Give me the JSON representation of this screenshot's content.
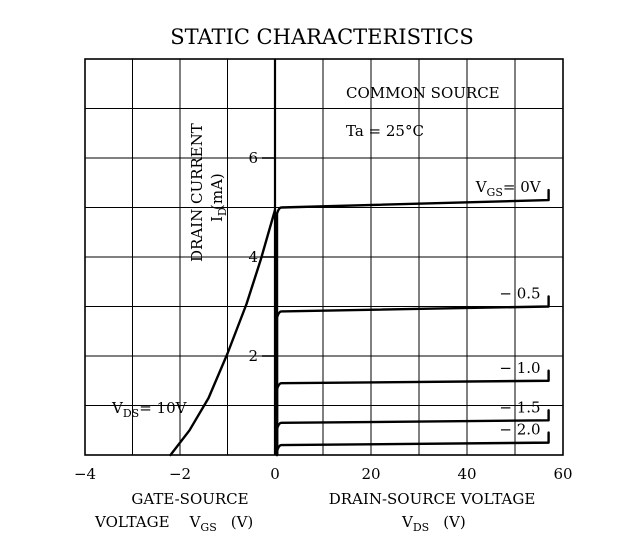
{
  "chart_data": {
    "type": "line",
    "title": "STATIC CHARACTERISTICS",
    "conditions": [
      "COMMON SOURCE",
      "Ta = 25°C"
    ],
    "ylabel": "DRAIN CURRENT",
    "ylabel_unit": "(mA)",
    "ylabel_symbol": "I",
    "ylabel_symbol_sub": "D",
    "left_xlabel_line1": "GATE-SOURCE",
    "left_xlabel_line2": "VOLTAGE",
    "left_xlabel_symbol": "V",
    "left_xlabel_symbol_sub": "GS",
    "left_xlabel_unit": "(V)",
    "right_xlabel_line1": "DRAIN-SOURCE VOLTAGE",
    "right_xlabel_symbol": "V",
    "right_xlabel_symbol_sub": "DS",
    "right_xlabel_unit": "(V)",
    "left_xlim": [
      -4,
      0
    ],
    "right_xlim": [
      0,
      60
    ],
    "ylim": [
      0,
      8
    ],
    "left_xticks": [
      "−4",
      "−2",
      "0"
    ],
    "right_xticks": [
      "20",
      "40",
      "60"
    ],
    "yticks": [
      "2",
      "4",
      "6"
    ],
    "grid": true,
    "transfer_curve": {
      "label_prefix": "V",
      "label_sub": "DS",
      "label_suffix": "= 10V",
      "vgs": [
        -2.2,
        -1.8,
        -1.4,
        -1.0,
        -0.6,
        -0.3,
        0
      ],
      "id": [
        0.0,
        0.5,
        1.15,
        2.05,
        3.05,
        3.95,
        4.95
      ]
    },
    "output_curves": [
      {
        "label": "V",
        "label_sub": "GS",
        "label_suffix": "= 0V",
        "vgs": 0,
        "id_sat": 5.0,
        "id_end": 5.15
      },
      {
        "label": "− 0.5",
        "vgs": -0.5,
        "id_sat": 2.9,
        "id_end": 3.0
      },
      {
        "label": "− 1.0",
        "vgs": -1.0,
        "id_sat": 1.45,
        "id_end": 1.5
      },
      {
        "label": "− 1.5",
        "vgs": -1.5,
        "id_sat": 0.65,
        "id_end": 0.7
      },
      {
        "label": "− 2.0",
        "vgs": -2.0,
        "id_sat": 0.2,
        "id_end": 0.25
      }
    ],
    "output_vds_max": 57
  }
}
